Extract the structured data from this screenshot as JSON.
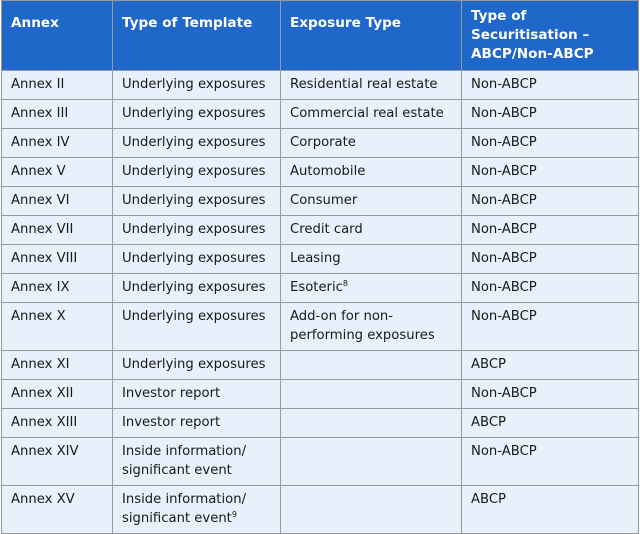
{
  "headers": {
    "annex": "Annex",
    "template": "Type of Template",
    "exposure": "Exposure Type",
    "securitisation": "Type of Securitisation – ABCP/Non-ABCP"
  },
  "rows": [
    {
      "annex": "Annex II",
      "template": "Underlying exposures",
      "template_sup": "",
      "exposure": "Residential real estate",
      "exposure_sup": "",
      "securitisation": "Non-ABCP"
    },
    {
      "annex": "Annex III",
      "template": "Underlying exposures",
      "template_sup": "",
      "exposure": "Commercial real estate",
      "exposure_sup": "",
      "securitisation": "Non-ABCP"
    },
    {
      "annex": "Annex IV",
      "template": "Underlying exposures",
      "template_sup": "",
      "exposure": "Corporate",
      "exposure_sup": "",
      "securitisation": "Non-ABCP"
    },
    {
      "annex": "Annex V",
      "template": "Underlying exposures",
      "template_sup": "",
      "exposure": "Automobile",
      "exposure_sup": "",
      "securitisation": "Non-ABCP"
    },
    {
      "annex": "Annex VI",
      "template": "Underlying exposures",
      "template_sup": "",
      "exposure": "Consumer",
      "exposure_sup": "",
      "securitisation": "Non-ABCP"
    },
    {
      "annex": "Annex VII",
      "template": "Underlying exposures",
      "template_sup": "",
      "exposure": "Credit card",
      "exposure_sup": "",
      "securitisation": "Non-ABCP"
    },
    {
      "annex": "Annex VIII",
      "template": "Underlying exposures",
      "template_sup": "",
      "exposure": "Leasing",
      "exposure_sup": "",
      "securitisation": "Non-ABCP"
    },
    {
      "annex": "Annex IX",
      "template": "Underlying exposures",
      "template_sup": "",
      "exposure": "Esoteric",
      "exposure_sup": "8",
      "securitisation": "Non-ABCP"
    },
    {
      "annex": "Annex X",
      "template": "Underlying exposures",
      "template_sup": "",
      "exposure": "Add-on for non-performing exposures",
      "exposure_sup": "",
      "securitisation": "Non-ABCP"
    },
    {
      "annex": "Annex XI",
      "template": "Underlying exposures",
      "template_sup": "",
      "exposure": "",
      "exposure_sup": "",
      "securitisation": "ABCP"
    },
    {
      "annex": "Annex XII",
      "template": "Investor report",
      "template_sup": "",
      "exposure": "",
      "exposure_sup": "",
      "securitisation": "Non-ABCP"
    },
    {
      "annex": "Annex XIII",
      "template": "Investor report",
      "template_sup": "",
      "exposure": "",
      "exposure_sup": "",
      "securitisation": "ABCP"
    },
    {
      "annex": "Annex XIV",
      "template": "Inside information/ significant event",
      "template_sup": "",
      "exposure": "",
      "exposure_sup": "",
      "securitisation": "Non-ABCP"
    },
    {
      "annex": "Annex XV",
      "template": "Inside information/ significant event",
      "template_sup": "9",
      "exposure": "",
      "exposure_sup": "",
      "securitisation": "ABCP"
    }
  ]
}
